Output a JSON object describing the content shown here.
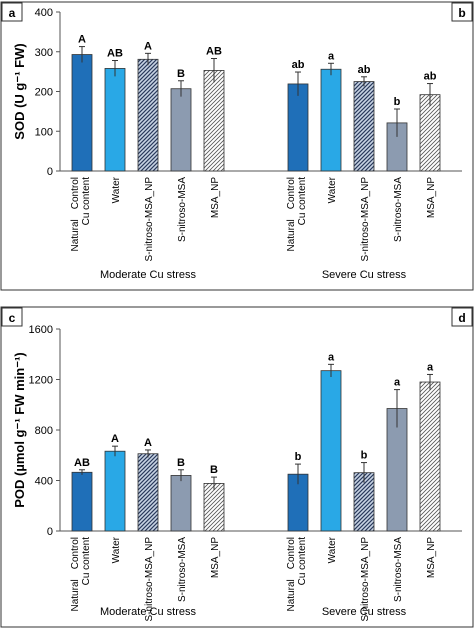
{
  "chart_data": [
    {
      "type": "bar",
      "panel_labels": [
        "a",
        "b"
      ],
      "ylabel": "SOD (U g⁻¹ FW)",
      "ylim": [
        0,
        400
      ],
      "yticks": [
        0,
        100,
        200,
        300,
        400
      ],
      "categories": [
        "Natural Cu content Control",
        "Water",
        "S-nitroso-MSA_NP",
        "S-nitroso-MSA",
        "MSA_NP"
      ],
      "category_lines": [
        [
          "Natural",
          "Cu content"
        ],
        [
          "Control"
        ],
        [
          "Water"
        ],
        [
          "S-nitroso-MSA_NP"
        ],
        [
          "S-nitroso-MSA"
        ],
        [
          "MSA_NP"
        ]
      ],
      "groups": [
        {
          "name": "Moderate Cu stress",
          "values": [
            293,
            258,
            281,
            207,
            253
          ],
          "errors": [
            20,
            20,
            15,
            20,
            30
          ],
          "letters": [
            "A",
            "AB",
            "A",
            "B",
            "AB"
          ]
        },
        {
          "name": "Severe Cu stress",
          "values": [
            219,
            256,
            225,
            121,
            192
          ],
          "errors": [
            30,
            15,
            12,
            35,
            28
          ],
          "letters": [
            "ab",
            "a",
            "ab",
            "b",
            "ab"
          ]
        }
      ]
    },
    {
      "type": "bar",
      "panel_labels": [
        "c",
        "d"
      ],
      "ylabel": "POD (µmol g⁻¹ FW min⁻¹)",
      "ylim": [
        0,
        1600
      ],
      "yticks": [
        0,
        400,
        800,
        1200,
        1600
      ],
      "categories": [
        "Natural Cu content Control",
        "Water",
        "S-nitroso-MSA_NP",
        "S-nitroso-MSA",
        "MSA_NP"
      ],
      "category_lines": [
        [
          "Natural",
          "Cu content"
        ],
        [
          "Control"
        ],
        [
          "Water"
        ],
        [
          "S-nitroso-MSA_NP"
        ],
        [
          "S-nitroso-MSA"
        ],
        [
          "MSA_NP"
        ]
      ],
      "groups": [
        {
          "name": "Moderate Cu stress",
          "values": [
            465,
            632,
            612,
            440,
            377
          ],
          "errors": [
            20,
            40,
            30,
            45,
            50
          ],
          "letters": [
            "AB",
            "A",
            "A",
            "B",
            "B"
          ]
        },
        {
          "name": "Severe Cu stress",
          "values": [
            450,
            1270,
            462,
            970,
            1180
          ],
          "errors": [
            80,
            50,
            80,
            150,
            60
          ],
          "letters": [
            "b",
            "a",
            "b",
            "a",
            "a"
          ]
        }
      ]
    }
  ],
  "colors": [
    "#1f6fb8",
    "#29a8e6",
    "#4b5d86",
    "#8c9bb0",
    "#ffffff"
  ],
  "patterns": [
    "solid",
    "solid",
    "hatch",
    "solid",
    "hatch"
  ]
}
